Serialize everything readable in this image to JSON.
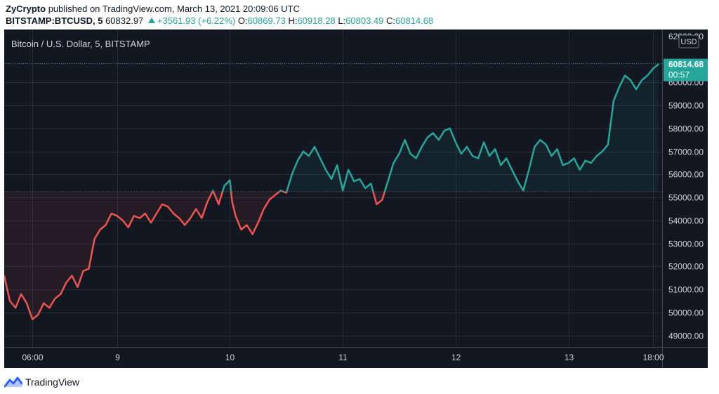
{
  "header": {
    "publisher": "ZyCrypto",
    "published_text": "published on TradingView.com, March 13, 2021 20:09:06 UTC",
    "symbol": "BITSTAMP:BTCUSD, 5",
    "last": "60832.97",
    "change": "+3561.93 (+6.22%)",
    "o_label": "O:",
    "o_value": "60869.73",
    "h_label": "H:",
    "h_value": "60918.28",
    "l_label": "L:",
    "l_value": "60803.49",
    "c_label": "C:",
    "c_value": "60814.68"
  },
  "footer": {
    "brand": "TradingView",
    "logo_icon": "tradingview-logo-icon"
  },
  "colors": {
    "background": "#131722",
    "grid": "#2a2e39",
    "up": "#26a69a",
    "down": "#ef5350",
    "text": "#d1d4dc"
  },
  "chart_data": {
    "type": "line",
    "title": "Bitcoin / U.S. Dollar, 5, BITSTAMP",
    "currency_label": "USD",
    "last_price_label": "60814.68",
    "countdown_label": "00:57",
    "baseline": 55250,
    "ylim": [
      48500,
      62300
    ],
    "xlim": [
      0,
      5.83
    ],
    "y_ticks": [
      "49000.00",
      "50000.00",
      "51000.00",
      "52000.00",
      "53000.00",
      "54000.00",
      "55000.00",
      "56000.00",
      "57000.00",
      "58000.00",
      "59000.00",
      "60000.00"
    ],
    "y_top_tick_partial": "62000.00",
    "x_ticks": [
      {
        "x": 0.25,
        "label": "06:00"
      },
      {
        "x": 1,
        "label": "9"
      },
      {
        "x": 2,
        "label": "10"
      },
      {
        "x": 3,
        "label": "11"
      },
      {
        "x": 4,
        "label": "12"
      },
      {
        "x": 5,
        "label": "13"
      },
      {
        "x": 5.75,
        "label": "18:00"
      }
    ],
    "x": [
      0,
      0.05,
      0.1,
      0.15,
      0.2,
      0.25,
      0.3,
      0.35,
      0.4,
      0.45,
      0.5,
      0.55,
      0.6,
      0.65,
      0.7,
      0.75,
      0.8,
      0.85,
      0.9,
      0.95,
      1.0,
      1.05,
      1.1,
      1.15,
      1.2,
      1.25,
      1.3,
      1.35,
      1.4,
      1.45,
      1.5,
      1.55,
      1.6,
      1.65,
      1.7,
      1.75,
      1.8,
      1.85,
      1.9,
      1.95,
      2.0,
      2.02,
      2.05,
      2.1,
      2.15,
      2.2,
      2.25,
      2.3,
      2.35,
      2.4,
      2.45,
      2.5,
      2.55,
      2.6,
      2.65,
      2.7,
      2.75,
      2.8,
      2.85,
      2.9,
      2.95,
      3.0,
      3.05,
      3.1,
      3.15,
      3.2,
      3.25,
      3.3,
      3.35,
      3.4,
      3.45,
      3.5,
      3.55,
      3.6,
      3.65,
      3.7,
      3.75,
      3.8,
      3.85,
      3.9,
      3.95,
      4.0,
      4.05,
      4.1,
      4.15,
      4.2,
      4.25,
      4.3,
      4.35,
      4.4,
      4.45,
      4.5,
      4.55,
      4.6,
      4.65,
      4.7,
      4.75,
      4.8,
      4.85,
      4.9,
      4.95,
      5.0,
      5.05,
      5.1,
      5.15,
      5.2,
      5.25,
      5.3,
      5.35,
      5.4,
      5.45,
      5.5,
      5.55,
      5.6,
      5.65,
      5.7,
      5.75,
      5.8
    ],
    "y": [
      51600,
      50500,
      50200,
      50800,
      50400,
      49700,
      49900,
      50400,
      50200,
      50600,
      50800,
      51300,
      51600,
      51100,
      51800,
      51900,
      53200,
      53600,
      53800,
      54300,
      54200,
      54000,
      53700,
      54200,
      54100,
      54300,
      53900,
      54300,
      54700,
      54600,
      54300,
      54100,
      53800,
      54100,
      54500,
      54100,
      54800,
      55300,
      54700,
      55500,
      55750,
      54800,
      54200,
      53600,
      53800,
      53400,
      53900,
      54500,
      54900,
      55100,
      55300,
      55200,
      56000,
      56600,
      57000,
      56800,
      57200,
      56700,
      56200,
      55800,
      56400,
      55300,
      56200,
      55700,
      55800,
      55400,
      55600,
      54700,
      54900,
      55700,
      56500,
      56900,
      57500,
      56900,
      56700,
      57200,
      57600,
      57800,
      57500,
      57900,
      58000,
      57400,
      56900,
      57200,
      56800,
      56700,
      57400,
      56800,
      57100,
      56400,
      56700,
      56200,
      55700,
      55300,
      56200,
      57200,
      57500,
      57300,
      56800,
      57100,
      56400,
      56500,
      56700,
      56200,
      56600,
      56500,
      56800,
      57000,
      57300,
      59200,
      59800,
      60300,
      60100,
      59700,
      60100,
      60300,
      60600,
      60800
    ]
  }
}
